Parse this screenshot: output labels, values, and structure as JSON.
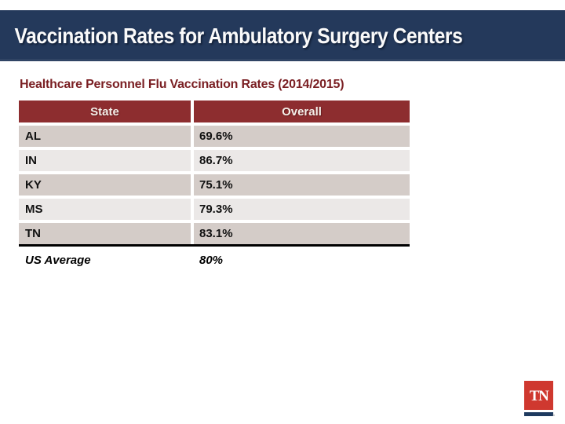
{
  "slide": {
    "title": "Vaccination Rates for Ambulatory Surgery Centers",
    "subtitle": "Healthcare Personnel Flu Vaccination Rates (2014/2015)"
  },
  "table": {
    "columns": [
      {
        "label": "State"
      },
      {
        "label": "Overall"
      }
    ],
    "rows": [
      {
        "state": "AL",
        "overall": "69.6%"
      },
      {
        "state": "IN",
        "overall": "86.7%"
      },
      {
        "state": "KY",
        "overall": "75.1%"
      },
      {
        "state": "MS",
        "overall": "79.3%"
      },
      {
        "state": "TN",
        "overall": "83.1%"
      }
    ],
    "summary": {
      "label": "US Average",
      "value": "80%"
    }
  },
  "logo": {
    "text": "TN",
    "trademark": "™"
  },
  "colors": {
    "title_bar_bg": "#24395b",
    "title_text": "#fafafa",
    "subtitle_text": "#7a1f23",
    "table_header_bg": "#8d2d2f",
    "table_header_text": "#f5efe9",
    "row_dark_bg": "#d4ccc8",
    "row_light_bg": "#ebe8e7",
    "table_rule": "#000000",
    "logo_red": "#cf382f",
    "logo_bar_navy": "#1e3a5f"
  }
}
